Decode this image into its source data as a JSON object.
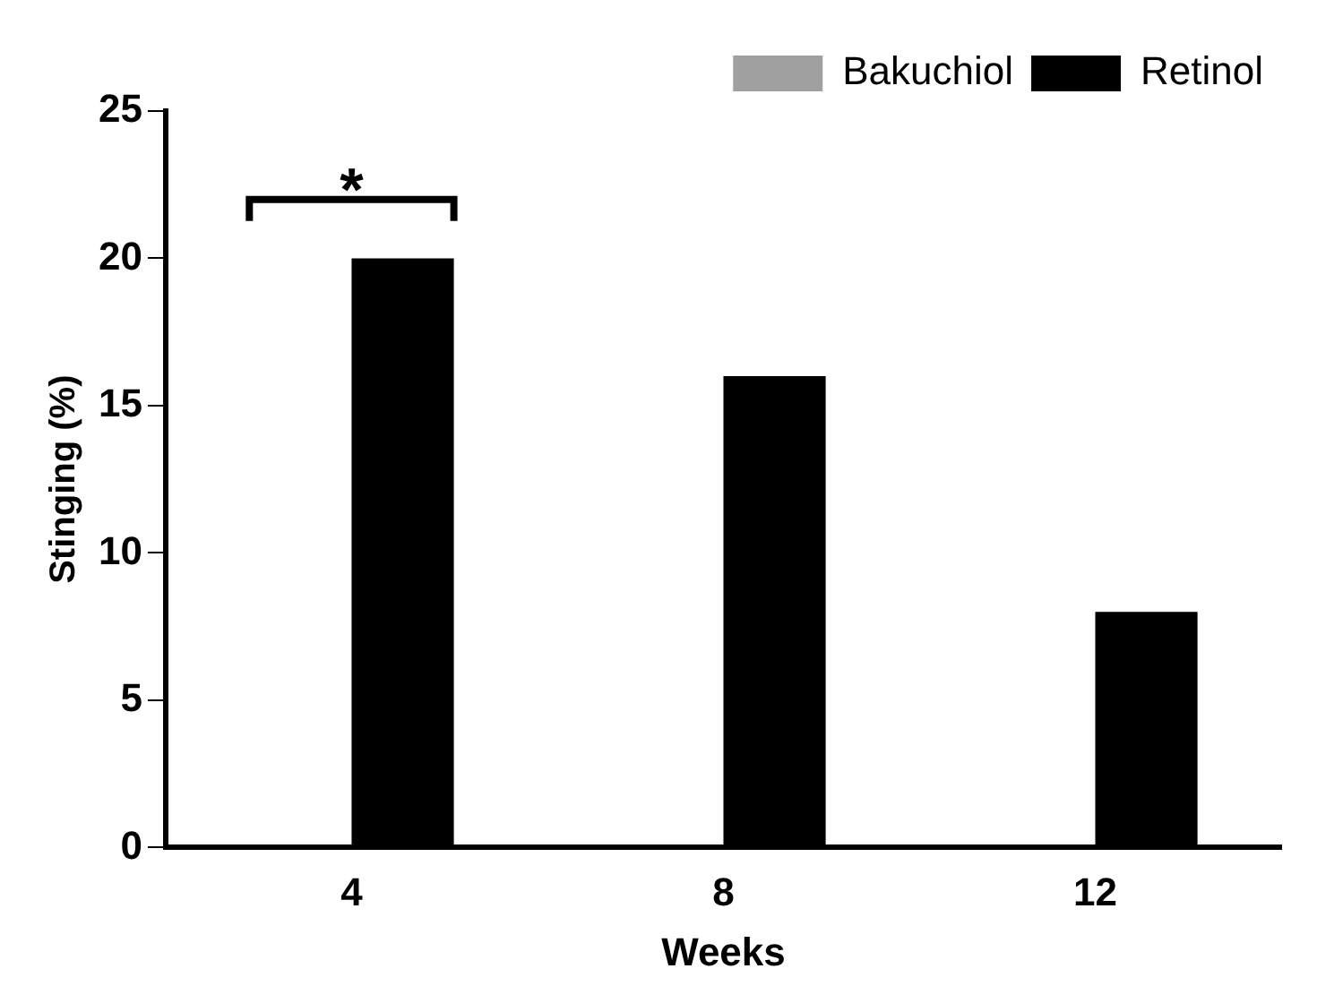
{
  "chart_data": {
    "type": "bar",
    "xlabel": "Weeks",
    "ylabel": "Stinging (%)",
    "categories": [
      "4",
      "8",
      "12"
    ],
    "series": [
      {
        "name": "Bakuchiol",
        "color": "#a0a0a0",
        "values": [
          0,
          0,
          0
        ]
      },
      {
        "name": "Retinol",
        "color": "#000000",
        "values": [
          20,
          16,
          8
        ]
      }
    ],
    "ylim": [
      0,
      25
    ],
    "yticks": [
      0,
      5,
      10,
      15,
      20,
      25
    ],
    "grid": false,
    "legend": "top right",
    "annotations": [
      "*"
    ]
  }
}
